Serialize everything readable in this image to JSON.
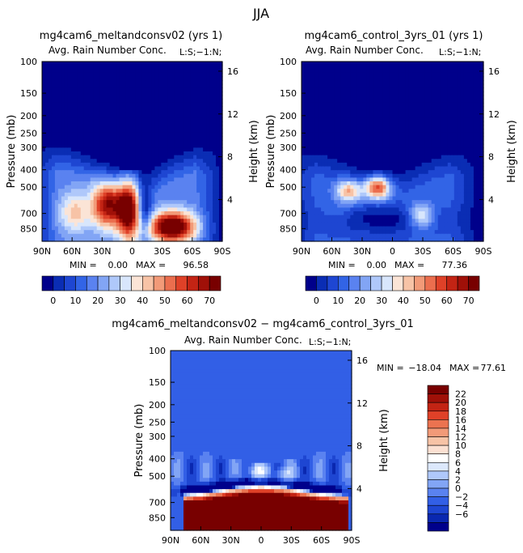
{
  "figure_title": "JJA",
  "palette": {
    "abs": [
      "#00008b",
      "#0a2db4",
      "#1e46d2",
      "#3264e6",
      "#5a82f0",
      "#82a5f5",
      "#afc8fa",
      "#d8e6fc",
      "#fbe4d6",
      "#f7c3a6",
      "#f29a78",
      "#eb6e4e",
      "#df4128",
      "#c32414",
      "#a01008",
      "#780000"
    ],
    "diff": [
      "#00008b",
      "#0a28b0",
      "#1e46d2",
      "#325fe6",
      "#5a82f0",
      "#82a5f5",
      "#afc8fa",
      "#dce8fc",
      "#ffffff",
      "#fbe0d2",
      "#f7c3a6",
      "#f29a78",
      "#eb7350",
      "#df4128",
      "#c32414",
      "#a01008",
      "#780000"
    ]
  },
  "chart_data": [
    {
      "type": "heatmap",
      "panel": "left",
      "title": "mg4cam6_meltandconsv02 (yrs 1)",
      "subtitle": "Avg. Rain Number Conc.",
      "units_tag": "L:S;−1:N;",
      "ylabel": "Pressure (mb)",
      "y2label": "Height (km)",
      "x_ticks": [
        "90N",
        "60N",
        "30N",
        "0",
        "30S",
        "60S",
        "90S"
      ],
      "y_ticks": [
        "100",
        "150",
        "200",
        "250",
        "300",
        "400",
        "500",
        "700",
        "850"
      ],
      "y2_ticks": [
        "16",
        "12",
        "8",
        "4"
      ],
      "min_label": "MIN =",
      "min": "0.00",
      "max_label": "MAX =",
      "max": "96.58",
      "colorbar_ticks": [
        "0",
        "10",
        "20",
        "30",
        "40",
        "50",
        "60",
        "70"
      ]
    },
    {
      "type": "heatmap",
      "panel": "right",
      "title": "mg4cam6_control_3yrs_01 (yrs 1)",
      "subtitle": "Avg. Rain Number Conc.",
      "units_tag": "L:S;−1:N;",
      "ylabel": "Pressure (mb)",
      "y2label": "Height (km)",
      "x_ticks": [
        "90N",
        "60N",
        "30N",
        "0",
        "30S",
        "60S",
        "90S"
      ],
      "y_ticks": [
        "100",
        "150",
        "200",
        "250",
        "300",
        "400",
        "500",
        "700",
        "850"
      ],
      "y2_ticks": [
        "16",
        "12",
        "8",
        "4"
      ],
      "min_label": "MIN =",
      "min": "0.00",
      "max_label": "MAX =",
      "max": "77.36",
      "colorbar_ticks": [
        "0",
        "10",
        "20",
        "30",
        "40",
        "50",
        "60",
        "70"
      ]
    },
    {
      "type": "heatmap",
      "panel": "difference",
      "title": "mg4cam6_meltandconsv02 − mg4cam6_control_3yrs_01",
      "subtitle": "Avg. Rain Number Conc.",
      "units_tag": "L:S;−1:N;",
      "ylabel": "Pressure (mb)",
      "y2label": "Height (km)",
      "x_ticks": [
        "90N",
        "60N",
        "30N",
        "0",
        "30S",
        "60S",
        "90S"
      ],
      "y_ticks": [
        "100",
        "150",
        "200",
        "250",
        "300",
        "400",
        "500",
        "700",
        "850"
      ],
      "y2_ticks": [
        "16",
        "12",
        "8",
        "4"
      ],
      "min_label": "MIN =",
      "min": "−18.04",
      "max_label": "MAX =",
      "max": "77.61",
      "colorbar_ticks": [
        "22",
        "20",
        "18",
        "16",
        "14",
        "12",
        "10",
        "8",
        "6",
        "4",
        "2",
        "0",
        "−2",
        "−4",
        "−6"
      ]
    }
  ]
}
